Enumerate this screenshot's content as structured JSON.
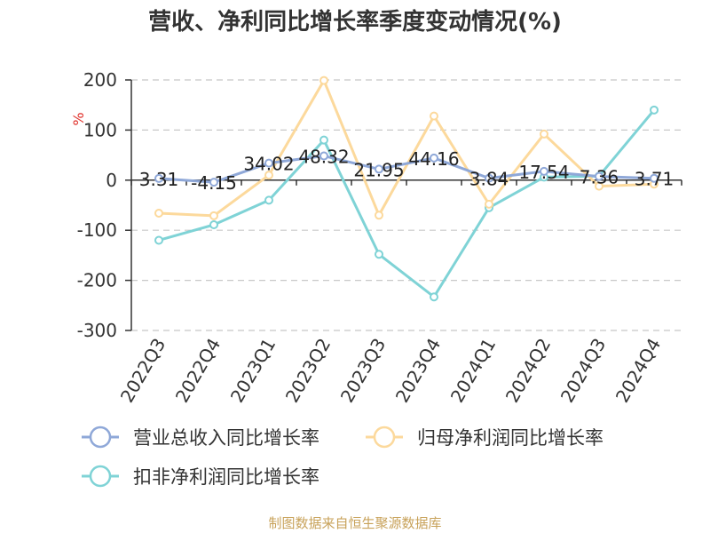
{
  "chart_data": {
    "type": "line",
    "title": "营收、净利同比增长率季度变动情况(%)",
    "ylabel": "%",
    "categories": [
      "2022Q3",
      "2022Q4",
      "2023Q1",
      "2023Q2",
      "2023Q3",
      "2023Q4",
      "2024Q1",
      "2024Q2",
      "2024Q3",
      "2024Q4"
    ],
    "ylim": [
      -300,
      200
    ],
    "yticks": [
      200,
      100,
      0,
      -100,
      -200,
      -300
    ],
    "grid": true,
    "legend_position": "bottom",
    "series": [
      {
        "name": "营业总收入同比增长率",
        "color": "#8fa8d8",
        "values": [
          3.31,
          -4.15,
          34.02,
          48.32,
          21.95,
          44.16,
          3.84,
          17.54,
          7.36,
          3.71
        ],
        "labels": [
          "3.31",
          "-4.15",
          "34.02",
          "48.32",
          "21.95",
          "44.16",
          "3.84",
          "17.54",
          "7.36",
          "3.71"
        ]
      },
      {
        "name": "归母净利润同比增长率",
        "color": "#fcd99c",
        "values": [
          -66,
          -71,
          10,
          199,
          -70,
          128,
          -48,
          92,
          -12,
          -8
        ]
      },
      {
        "name": "扣非净利润同比增长率",
        "color": "#7fd3d6",
        "values": [
          -120,
          -89,
          -40,
          80,
          -148,
          -233,
          -55,
          6,
          8,
          140
        ]
      }
    ]
  },
  "footer": {
    "source": "制图数据来自恒生聚源数据库"
  }
}
